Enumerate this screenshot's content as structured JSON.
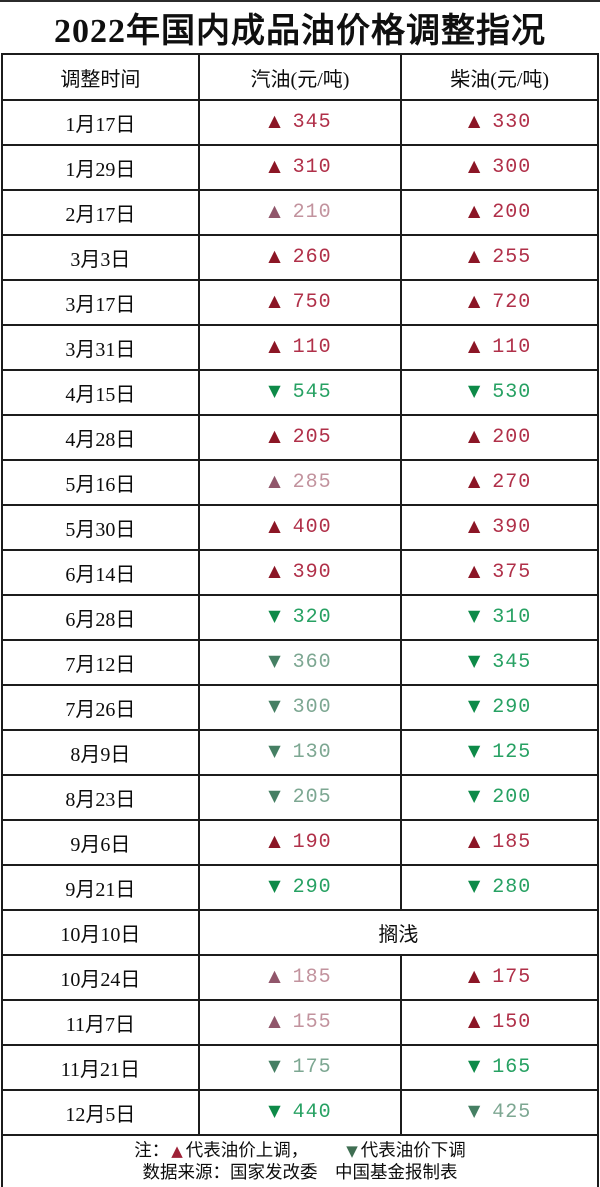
{
  "symbols": {
    "up": "▲",
    "down": "▼"
  },
  "colors": {
    "up_arrow": "#8c1626",
    "up_text": "#b03049",
    "up_muted_arrow": "#91566b",
    "up_muted_text": "#c2939e",
    "down_arrow": "#0d8a48",
    "down_text": "#27a163",
    "down_muted_arrow": "#457f63",
    "down_muted_text": "#7da792",
    "legend_up": "#9e2136",
    "legend_down": "#3f6e52",
    "border": "#1c1c1c"
  },
  "footer": {
    "note_prefix": "注：",
    "up_label": "代表油价上调，",
    "down_label": "代表油价下调",
    "source": "数据来源：国家发改委　中国基金报制表"
  },
  "chart_data": {
    "type": "table",
    "title": "2022年国内成品油价格调整指况",
    "columns": [
      "调整时间",
      "汽油(元/吨)",
      "柴油(元/吨)"
    ],
    "unit": "元/吨",
    "legend": {
      "up": "▲代表油价上调",
      "down": "▼代表油价下调"
    },
    "rows": [
      {
        "date": "1月17日",
        "gasoline": {
          "dir": "up",
          "value": "345",
          "muted": false
        },
        "diesel": {
          "dir": "up",
          "value": "330",
          "muted": false
        }
      },
      {
        "date": "1月29日",
        "gasoline": {
          "dir": "up",
          "value": "310",
          "muted": false
        },
        "diesel": {
          "dir": "up",
          "value": "300",
          "muted": false
        }
      },
      {
        "date": "2月17日",
        "gasoline": {
          "dir": "up",
          "value": "210",
          "muted": true
        },
        "diesel": {
          "dir": "up",
          "value": "200",
          "muted": false
        }
      },
      {
        "date": "3月3日",
        "gasoline": {
          "dir": "up",
          "value": "260",
          "muted": false
        },
        "diesel": {
          "dir": "up",
          "value": "255",
          "muted": false
        }
      },
      {
        "date": "3月17日",
        "gasoline": {
          "dir": "up",
          "value": "750",
          "muted": false
        },
        "diesel": {
          "dir": "up",
          "value": "720",
          "muted": false
        }
      },
      {
        "date": "3月31日",
        "gasoline": {
          "dir": "up",
          "value": "110",
          "muted": false
        },
        "diesel": {
          "dir": "up",
          "value": "110",
          "muted": false
        }
      },
      {
        "date": "4月15日",
        "gasoline": {
          "dir": "down",
          "value": "545",
          "muted": false
        },
        "diesel": {
          "dir": "down",
          "value": "530",
          "muted": false
        }
      },
      {
        "date": "4月28日",
        "gasoline": {
          "dir": "up",
          "value": "205",
          "muted": false
        },
        "diesel": {
          "dir": "up",
          "value": "200",
          "muted": false
        }
      },
      {
        "date": "5月16日",
        "gasoline": {
          "dir": "up",
          "value": "285",
          "muted": true
        },
        "diesel": {
          "dir": "up",
          "value": "270",
          "muted": false
        }
      },
      {
        "date": "5月30日",
        "gasoline": {
          "dir": "up",
          "value": "400",
          "muted": false
        },
        "diesel": {
          "dir": "up",
          "value": "390",
          "muted": false
        }
      },
      {
        "date": "6月14日",
        "gasoline": {
          "dir": "up",
          "value": "390",
          "muted": false
        },
        "diesel": {
          "dir": "up",
          "value": "375",
          "muted": false
        }
      },
      {
        "date": "6月28日",
        "gasoline": {
          "dir": "down",
          "value": "320",
          "muted": false
        },
        "diesel": {
          "dir": "down",
          "value": "310",
          "muted": false
        }
      },
      {
        "date": "7月12日",
        "gasoline": {
          "dir": "down",
          "value": "360",
          "muted": true
        },
        "diesel": {
          "dir": "down",
          "value": "345",
          "muted": false
        }
      },
      {
        "date": "7月26日",
        "gasoline": {
          "dir": "down",
          "value": "300",
          "muted": true
        },
        "diesel": {
          "dir": "down",
          "value": "290",
          "muted": false
        }
      },
      {
        "date": "8月9日",
        "gasoline": {
          "dir": "down",
          "value": "130",
          "muted": true
        },
        "diesel": {
          "dir": "down",
          "value": "125",
          "muted": false
        }
      },
      {
        "date": "8月23日",
        "gasoline": {
          "dir": "down",
          "value": "205",
          "muted": true
        },
        "diesel": {
          "dir": "down",
          "value": "200",
          "muted": false
        }
      },
      {
        "date": "9月6日",
        "gasoline": {
          "dir": "up",
          "value": "190",
          "muted": false
        },
        "diesel": {
          "dir": "up",
          "value": "185",
          "muted": false
        }
      },
      {
        "date": "9月21日",
        "gasoline": {
          "dir": "down",
          "value": "290",
          "muted": false
        },
        "diesel": {
          "dir": "down",
          "value": "280",
          "muted": false
        }
      },
      {
        "date": "10月10日",
        "stranded": "搁浅"
      },
      {
        "date": "10月24日",
        "gasoline": {
          "dir": "up",
          "value": "185",
          "muted": true
        },
        "diesel": {
          "dir": "up",
          "value": "175",
          "muted": false
        }
      },
      {
        "date": "11月7日",
        "gasoline": {
          "dir": "up",
          "value": "155",
          "muted": true
        },
        "diesel": {
          "dir": "up",
          "value": "150",
          "muted": false
        }
      },
      {
        "date": "11月21日",
        "gasoline": {
          "dir": "down",
          "value": "175",
          "muted": true
        },
        "diesel": {
          "dir": "down",
          "value": "165",
          "muted": false
        }
      },
      {
        "date": "12月5日",
        "gasoline": {
          "dir": "down",
          "value": "440",
          "muted": false
        },
        "diesel": {
          "dir": "down",
          "value": "425",
          "muted": true
        }
      }
    ]
  }
}
